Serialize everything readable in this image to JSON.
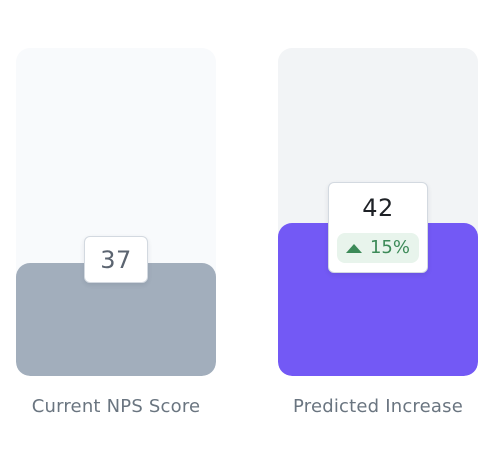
{
  "current": {
    "value": "37",
    "label": "Current NPS Score",
    "fill_fraction": 0.345,
    "fill_color": "#a2aebc",
    "track_color": "#f8fafc"
  },
  "predicted": {
    "value": "42",
    "change": "15%",
    "change_icon": "caret-up-icon",
    "label": "Predicted Increase",
    "fill_fraction": 0.466,
    "fill_color": "#7359f5",
    "track_color": "#f2f4f6",
    "change_color": "#3c8a58"
  }
}
